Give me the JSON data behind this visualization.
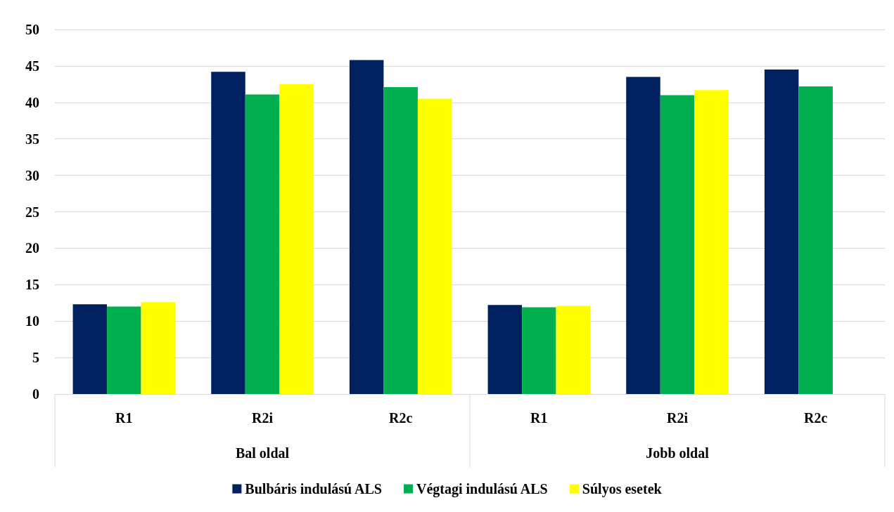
{
  "chart_data": {
    "type": "bar",
    "categories": [
      "R1",
      "R2i",
      "R2c",
      "R1",
      "R2i",
      "R2c"
    ],
    "series": [
      {
        "name": "Bulbáris indulású ALS",
        "color": "#002060",
        "values": [
          12.3,
          44.2,
          45.8,
          12.2,
          43.5,
          44.5
        ]
      },
      {
        "name": "Végtagi indulású ALS",
        "color": "#00b050",
        "values": [
          12.0,
          41.1,
          42.1,
          11.9,
          41.0,
          42.2
        ]
      },
      {
        "name": "Súlyos esetek",
        "color": "#ffff00",
        "values": [
          12.6,
          42.5,
          40.5,
          12.1,
          41.7,
          null
        ]
      }
    ],
    "annotations": [
      "Bal oldal",
      "Jobb oldal"
    ],
    "ylim": [
      0,
      50
    ],
    "yticks": [
      0,
      5,
      10,
      15,
      20,
      25,
      30,
      35,
      40,
      45,
      50
    ],
    "grid": "y",
    "legend": "bottom"
  }
}
